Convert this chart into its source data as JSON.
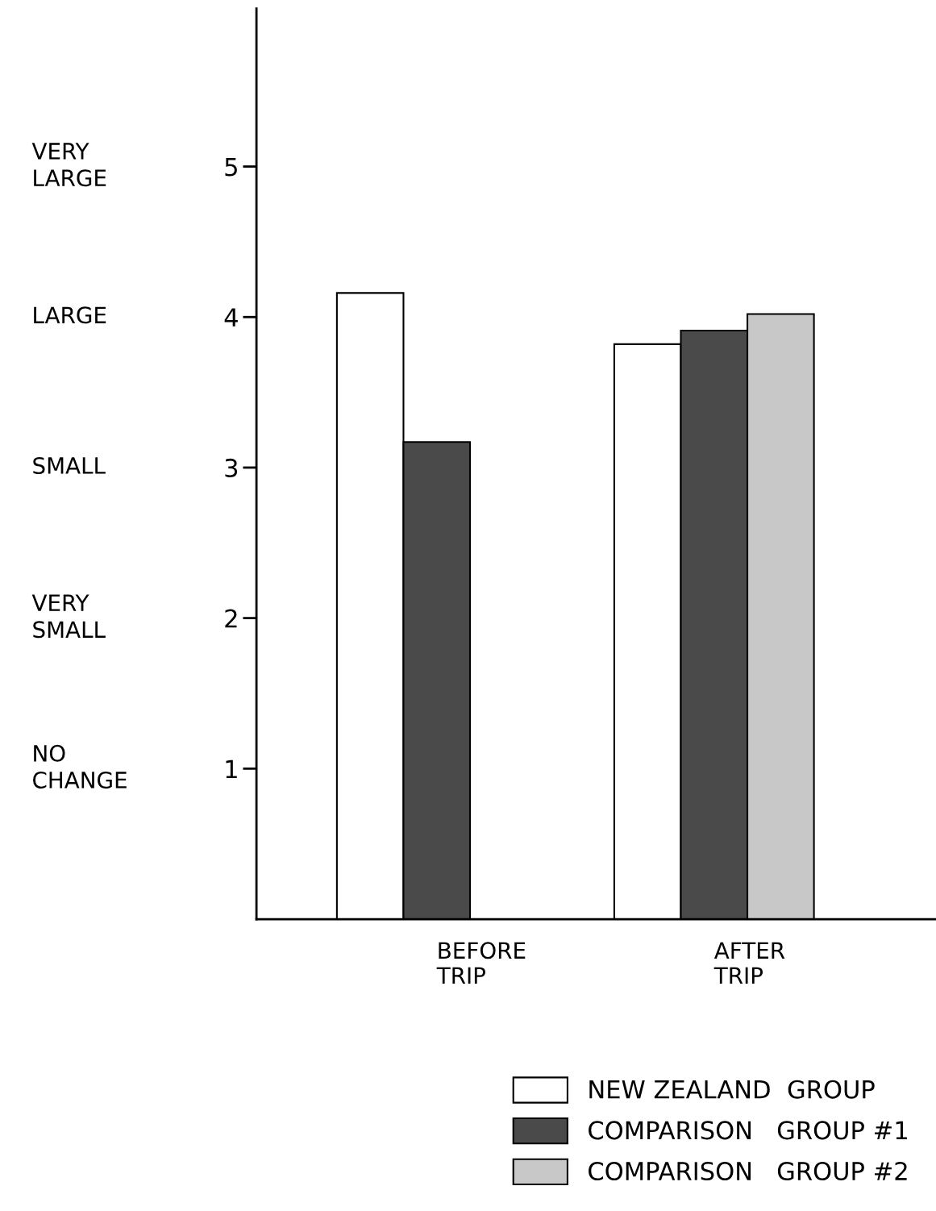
{
  "chart_data": {
    "type": "bar",
    "categories": [
      "BEFORE\nTRIP",
      "AFTER\nTRIP"
    ],
    "series": [
      {
        "name": "NEW ZEALAND  GROUP",
        "color": "#ffffff",
        "values": [
          4.16,
          3.82
        ]
      },
      {
        "name": "COMPARISON   GROUP #1",
        "color": "#4a4a4a",
        "values": [
          3.17,
          3.91
        ]
      },
      {
        "name": "COMPARISON   GROUP #2",
        "color": "#c8c8c8",
        "values": [
          null,
          4.02
        ]
      }
    ],
    "ylim": [
      0,
      6.05
    ],
    "yticks": [
      1,
      2,
      3,
      4,
      5
    ],
    "annotations": [
      "NO\nCHANGE",
      "VERY\nSMALL",
      "SMALL",
      "LARGE",
      "VERY\nLARGE"
    ],
    "grid": false,
    "legend": "bottom right"
  }
}
